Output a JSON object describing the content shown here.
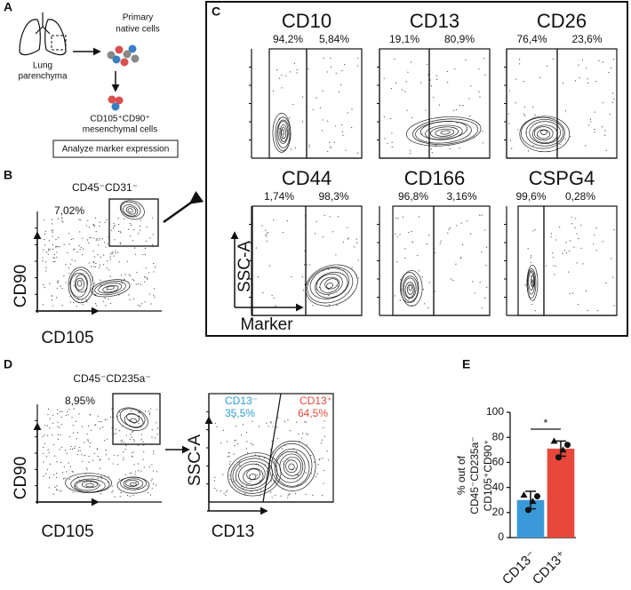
{
  "panel_labels": [
    "A",
    "B",
    "C",
    "D",
    "E"
  ],
  "panel_a": {
    "lung_label": [
      "Lung",
      "parenchyma"
    ],
    "cells_label": [
      "Primary",
      "native cells"
    ],
    "sorted_label": [
      "CD105⁺CD90⁺",
      "mesenchymal cells"
    ],
    "action": "Analyze marker expression"
  },
  "panel_b": {
    "title": "CD45⁻CD31⁻",
    "gate_label": "7,02%",
    "x_label": "CD105",
    "y_label": "CD90"
  },
  "panel_c": {
    "plots": [
      {
        "title": "CD10",
        "left": "94,2%",
        "right": "5,84%"
      },
      {
        "title": "CD13",
        "left": "19,1%",
        "right": "80,9%"
      },
      {
        "title": "CD26",
        "left": "76,4%",
        "right": "23,6%"
      },
      {
        "title": "CD44",
        "left": "1,74%",
        "right": "98,3%"
      },
      {
        "title": "CD166",
        "left": "96,8%",
        "right": "3,16%"
      },
      {
        "title": "CSPG4",
        "left": "99,6%",
        "right": "0,28%"
      }
    ],
    "x_label": "Marker",
    "y_label": "SSC-A"
  },
  "panel_d": {
    "title": "CD45⁻CD235a⁻",
    "gate_label": "8,95%",
    "x_label": "CD105",
    "y_label": "CD90",
    "second_x_label": "CD13",
    "second_y_label": "SSC-A",
    "neg_name": "CD13⁻",
    "neg_pct": "35,5%",
    "pos_name": "CD13⁺",
    "pos_pct": "64,5%"
  },
  "chart_data": {
    "type": "bar",
    "y_label": [
      "% out of",
      "CD45⁻CD235a⁻",
      "CD105⁺CD90⁺"
    ],
    "categories": [
      "CD13⁻",
      "CD13⁺"
    ],
    "values": [
      30,
      71
    ],
    "errors": [
      7,
      6
    ],
    "points": [
      [
        34,
        22,
        29,
        33
      ],
      [
        77,
        64,
        70,
        74
      ]
    ],
    "colors": [
      "#3a9ad9",
      "#e8473c"
    ],
    "significance": "*",
    "ylim": [
      0,
      100
    ],
    "yticks": [
      0,
      20,
      40,
      60,
      80,
      100
    ]
  }
}
